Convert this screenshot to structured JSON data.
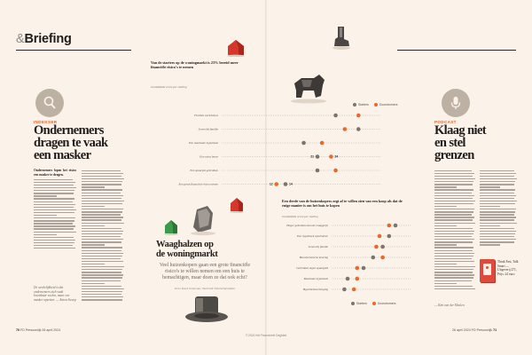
{
  "header": {
    "amp": "&",
    "title": "Briefing"
  },
  "left_article": {
    "kicker": "INDEKSER",
    "headline": [
      "Ondernemers",
      "dragen te vaak",
      "een masker"
    ],
    "lead": "Ondernemers lopen het risico een masker te dragen.",
    "quote_caption": "De werkelijkheid is dat ondernemers zich vaak kwetsbaar voelen, maar een masker opzetten. — Anton Swoep"
  },
  "right_article": {
    "kicker": "PODCAST",
    "headline": [
      "Klaag niet",
      "en stel",
      "grenzen"
    ],
    "byline": "— Kim van der Meulen"
  },
  "feature": {
    "headline": [
      "Waaghalzen op",
      "de woningmarkt"
    ],
    "deck": "Veel huizenkopers gaan een grote financiële risico's te willen nemen om een huis te bemachtigen, maar doen ze dat ook echt?",
    "byline": "Door Ruud Ooijevaar, illustratie Mentorbijsnijden"
  },
  "chart_top": {
    "title": "Van de starters op de woningmarkt is 23% bereid meer financiële risico's te nemen",
    "subtitle": "Gemiddelde score per stelling",
    "legend": [
      {
        "label": "Starters",
        "color": "#7a756f"
      },
      {
        "label": "Doorstromers",
        "color": "#e8692c"
      }
    ],
    "rows": [
      {
        "label": "Flexibel werk/bonus",
        "starters": 25,
        "doorstromers": 30
      },
      {
        "label": "Lenen bij familie",
        "starters": 30,
        "doorstromers": 27
      },
      {
        "label": "Een maximale hypotheek",
        "starters": 18,
        "doorstromers": 22
      },
      {
        "label": "Een extra bouw",
        "starters": 21,
        "doorstromers": 24
      },
      {
        "label": "Een spaarpot gebruiken",
        "starters": 21,
        "doorstromers": 25
      },
      {
        "label": "Een groot financieel risico nemen",
        "starters": 14,
        "doorstromers": 12
      }
    ],
    "labels": {
      "r3a": "21",
      "r3b": "24",
      "r5a": "14",
      "r5b": "12"
    }
  },
  "chart_bottom": {
    "title": "Een derde van de huizenkopers zegt af te willen zien van een koop als dat de enige manier is om het huis te kopen",
    "subtitle": "Gemiddelde score per stelling",
    "legend": [
      {
        "label": "Starters",
        "color": "#7a756f"
      },
      {
        "label": "Doorstromers",
        "color": "#e8692c"
      }
    ],
    "rows": [
      {
        "label": "Hoger gebruiken dan de vraagprijs",
        "starters": 35,
        "doorstromers": 33
      },
      {
        "label": "Een hypotheek opschuiven",
        "starters": 33,
        "doorstromers": 30
      },
      {
        "label": "Lenen bij familie",
        "starters": 31,
        "doorstromers": 29
      },
      {
        "label": "Bouwtechnische keuring",
        "starters": 28,
        "doorstromers": 31
      },
      {
        "label": "Gebruiken eigen spaargeld",
        "starters": 25,
        "doorstromers": 23
      },
      {
        "label": "Maximale hypotheek",
        "starters": 20,
        "doorstromers": 23
      },
      {
        "label": "Hypotheekverlenging",
        "starters": 19,
        "doorstromers": 22
      }
    ]
  },
  "book": {
    "caption": "Think Fast, Talk Smart — Uitgeverij 271, Prijs: 24 euro"
  },
  "footer": {
    "left_page": "70",
    "left_pub": "FD Persoonlijk",
    "left_date": "26 april 2024",
    "right_date": "26 april 2024",
    "right_pub": "FD Persoonlijk",
    "right_page": "71",
    "copyright": "© 2024 Het Financieele Dagblad"
  }
}
